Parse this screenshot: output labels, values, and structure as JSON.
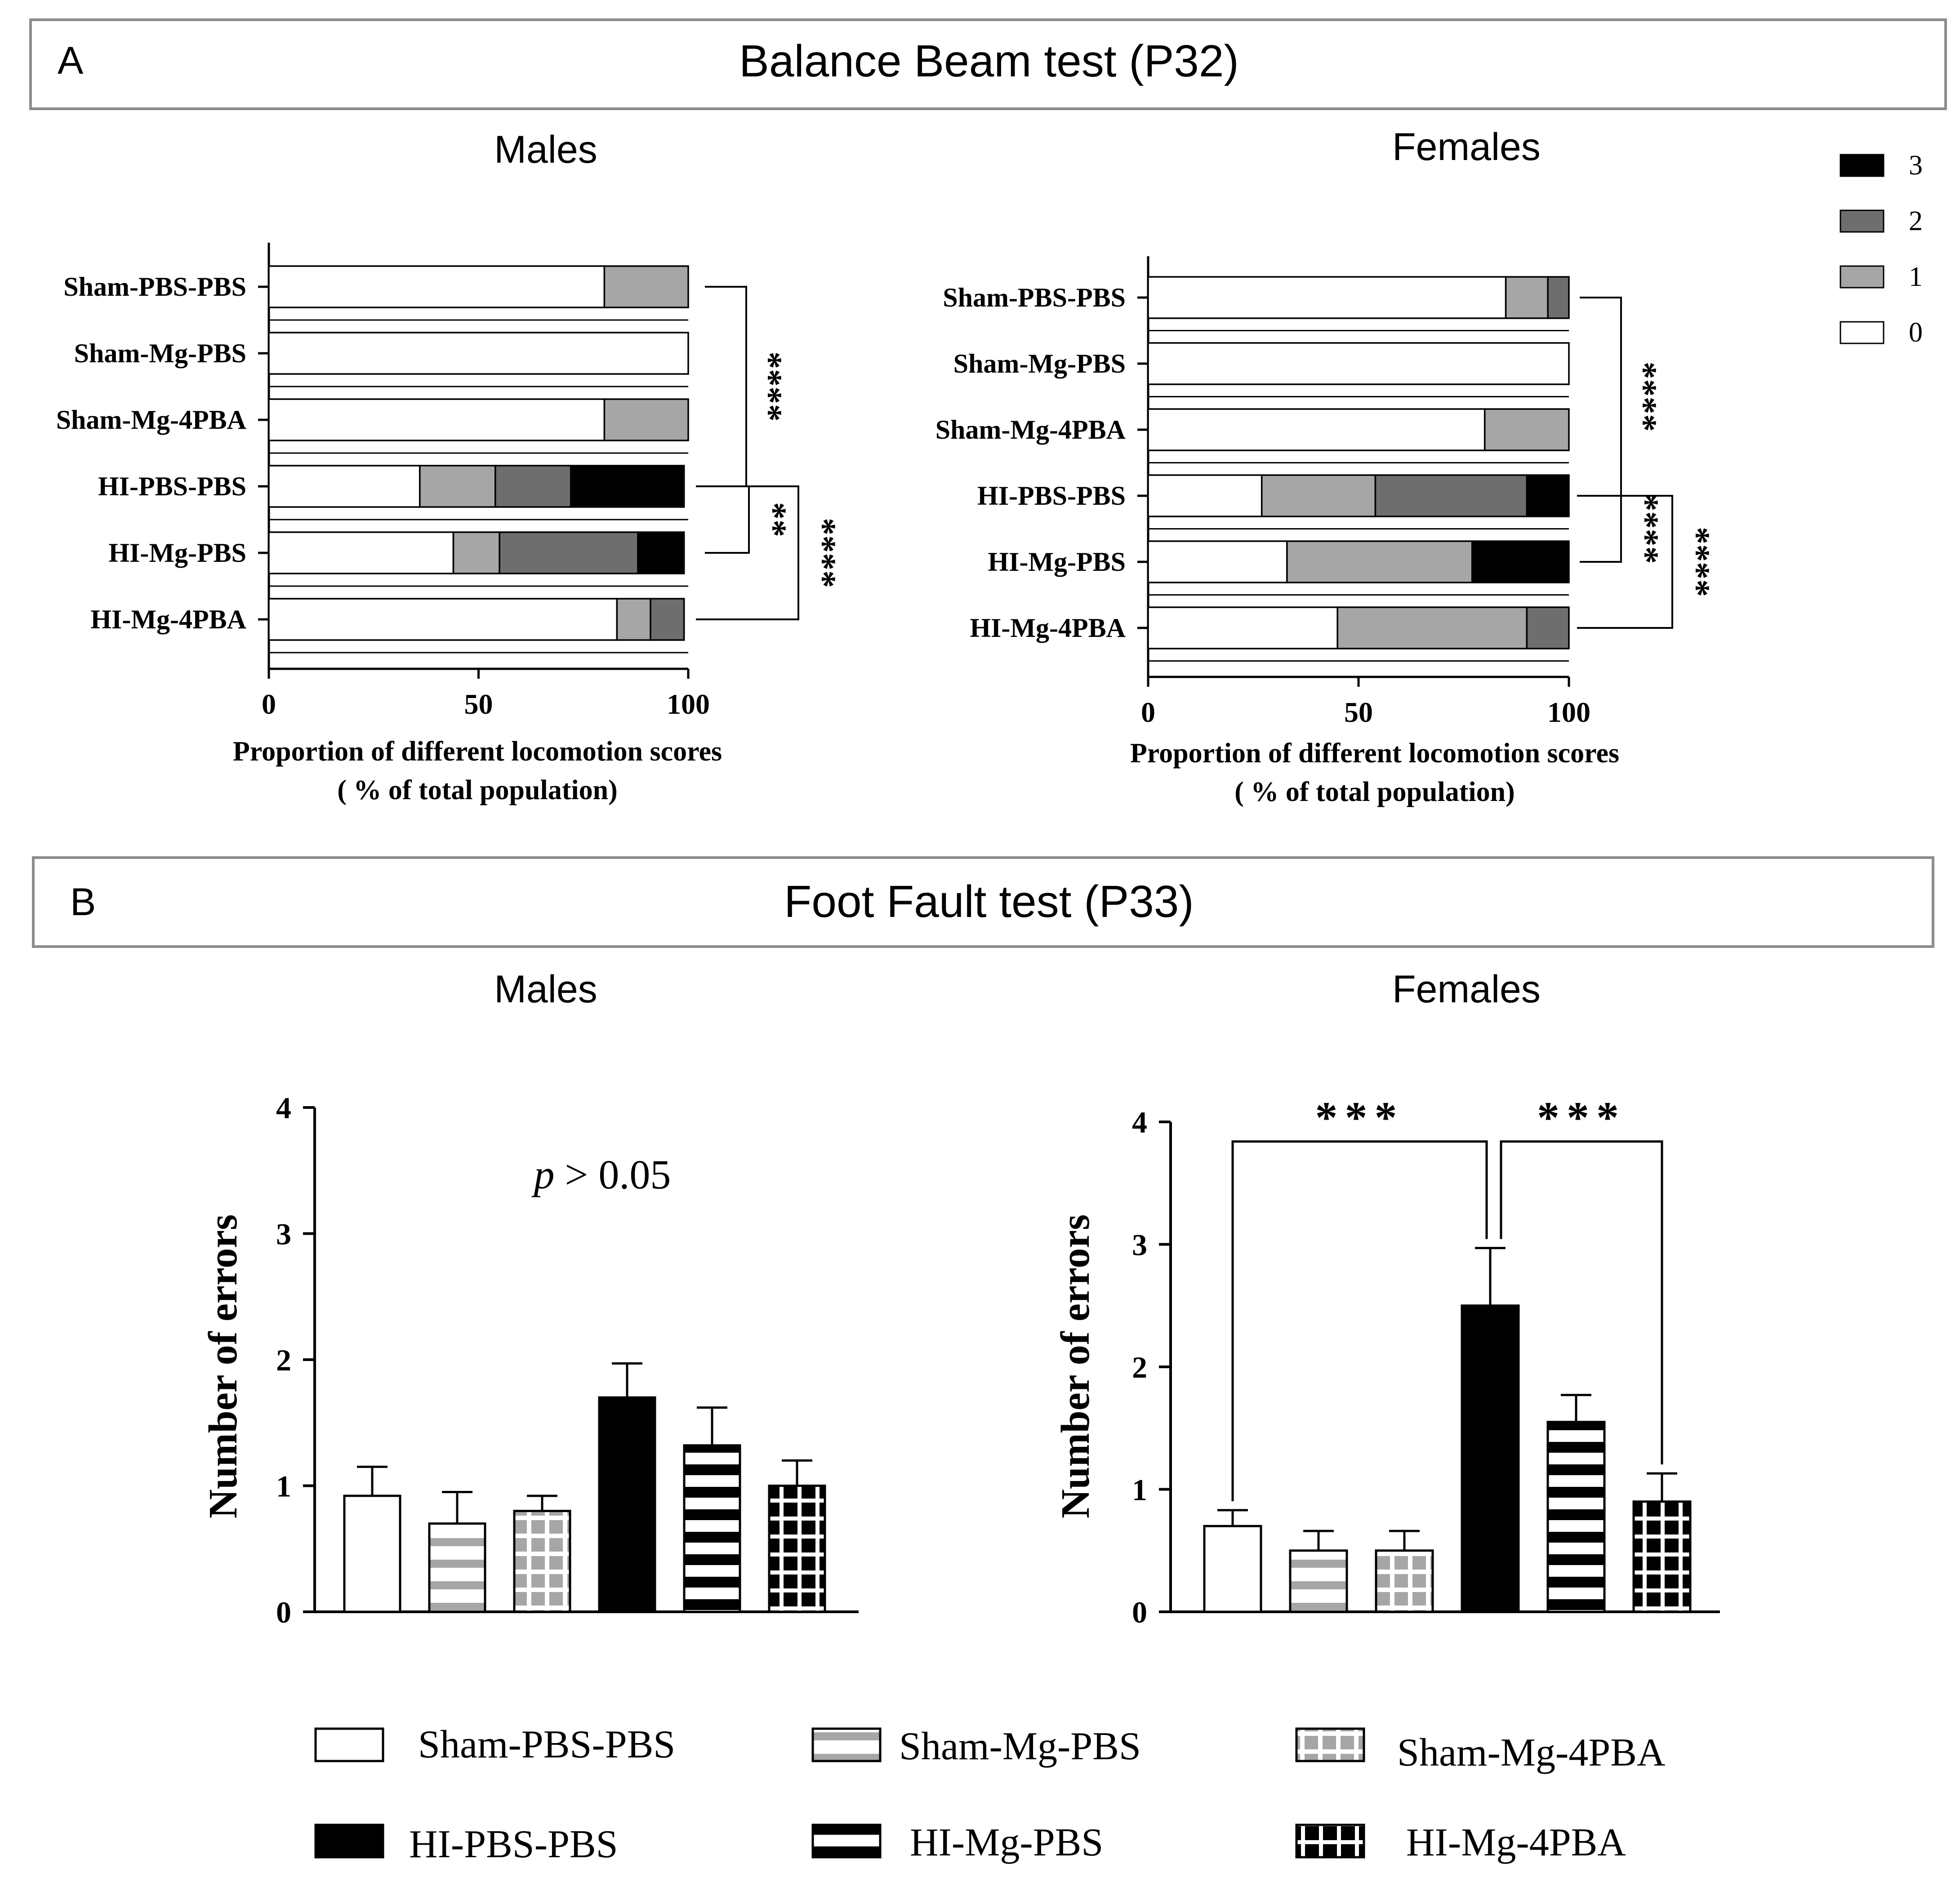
{
  "panels": {
    "A": {
      "letter": "A",
      "title": "Balance Beam test (P32)"
    },
    "B": {
      "letter": "B",
      "title": "Foot Fault test (P33)"
    }
  },
  "score_legend": {
    "items": [
      {
        "label": "3",
        "color": "#000000"
      },
      {
        "label": "2",
        "color": "#6e6e6e"
      },
      {
        "label": "1",
        "color": "#a6a6a6"
      },
      {
        "label": "0",
        "color": "#ffffff"
      }
    ]
  },
  "group_legend": {
    "items": [
      {
        "label": "Sham-PBS-PBS",
        "pattern": "open"
      },
      {
        "label": "Sham-Mg-PBS",
        "pattern": "hstripe-gray"
      },
      {
        "label": "Sham-Mg-4PBA",
        "pattern": "grid-gray"
      },
      {
        "label": "HI-PBS-PBS",
        "pattern": "solid-black"
      },
      {
        "label": "HI-Mg-PBS",
        "pattern": "hstripe-black"
      },
      {
        "label": "HI-Mg-4PBA",
        "pattern": "grid-black"
      }
    ]
  },
  "chart_data": [
    {
      "id": "A-males",
      "type": "bar",
      "orientation": "horizontal",
      "stacked": true,
      "title": "Males",
      "xlabel": "Proportion of different locomotion scores",
      "xlabel2": "( % of total population)",
      "xlim": [
        0,
        100
      ],
      "xticks": [
        0,
        50,
        100
      ],
      "categories": [
        "Sham-PBS-PBS",
        "Sham-Mg-PBS",
        "Sham-Mg-4PBA",
        "HI-PBS-PBS",
        "HI-Mg-PBS",
        "HI-Mg-4PBA"
      ],
      "series": [
        {
          "name": "0",
          "color": "#ffffff",
          "values": [
            80,
            100,
            80,
            36,
            44,
            83
          ]
        },
        {
          "name": "1",
          "color": "#a6a6a6",
          "values": [
            20,
            0,
            20,
            18,
            11,
            8
          ]
        },
        {
          "name": "2",
          "color": "#6e6e6e",
          "values": [
            0,
            0,
            0,
            18,
            33,
            8
          ]
        },
        {
          "name": "3",
          "color": "#000000",
          "values": [
            0,
            0,
            0,
            27,
            11,
            0
          ]
        }
      ],
      "significance": [
        {
          "from": "Sham-PBS-PBS",
          "to": "HI-PBS-PBS",
          "label": "****"
        },
        {
          "from": "HI-PBS-PBS",
          "to": "HI-Mg-PBS",
          "label": "**"
        },
        {
          "from": "HI-PBS-PBS",
          "to": "HI-Mg-4PBA",
          "label": "****"
        }
      ]
    },
    {
      "id": "A-females",
      "type": "bar",
      "orientation": "horizontal",
      "stacked": true,
      "title": "Females",
      "xlabel": "Proportion of different locomotion scores",
      "xlabel2": "( % of total population)",
      "xlim": [
        0,
        100
      ],
      "xticks": [
        0,
        50,
        100
      ],
      "categories": [
        "Sham-PBS-PBS",
        "Sham-Mg-PBS",
        "Sham-Mg-4PBA",
        "HI-PBS-PBS",
        "HI-Mg-PBS",
        "HI-Mg-4PBA"
      ],
      "series": [
        {
          "name": "0",
          "color": "#ffffff",
          "values": [
            85,
            100,
            80,
            27,
            33,
            45
          ]
        },
        {
          "name": "1",
          "color": "#a6a6a6",
          "values": [
            10,
            0,
            20,
            27,
            44,
            45
          ]
        },
        {
          "name": "2",
          "color": "#6e6e6e",
          "values": [
            5,
            0,
            0,
            36,
            0,
            10
          ]
        },
        {
          "name": "3",
          "color": "#000000",
          "values": [
            0,
            0,
            0,
            10,
            23,
            0
          ]
        }
      ],
      "significance": [
        {
          "from": "Sham-PBS-PBS",
          "to": "HI-PBS-PBS",
          "label": "****"
        },
        {
          "from": "HI-PBS-PBS",
          "to": "HI-Mg-PBS",
          "label": "****"
        },
        {
          "from": "HI-PBS-PBS",
          "to": "HI-Mg-4PBA",
          "label": "****"
        }
      ]
    },
    {
      "id": "B-males",
      "type": "bar",
      "title": "Males",
      "ylabel": "Number of errors",
      "ylim": [
        0,
        4
      ],
      "yticks": [
        0,
        1,
        2,
        3,
        4
      ],
      "categories": [
        "Sham-PBS-PBS",
        "Sham-Mg-PBS",
        "Sham-Mg-4PBA",
        "HI-PBS-PBS",
        "HI-Mg-PBS",
        "HI-Mg-4PBA"
      ],
      "values": [
        0.92,
        0.7,
        0.8,
        1.7,
        1.32,
        1.0
      ],
      "errors": [
        0.23,
        0.25,
        0.12,
        0.27,
        0.3,
        0.2
      ],
      "annotation": {
        "italic": "p",
        "text": " > 0.05"
      }
    },
    {
      "id": "B-females",
      "type": "bar",
      "title": "Females",
      "ylabel": "Number of errors",
      "ylim": [
        0,
        4
      ],
      "yticks": [
        0,
        1,
        2,
        3,
        4
      ],
      "categories": [
        "Sham-PBS-PBS",
        "Sham-Mg-PBS",
        "Sham-Mg-4PBA",
        "HI-PBS-PBS",
        "HI-Mg-PBS",
        "HI-Mg-4PBA"
      ],
      "values": [
        0.7,
        0.5,
        0.5,
        2.5,
        1.55,
        0.9
      ],
      "errors": [
        0.13,
        0.16,
        0.16,
        0.47,
        0.22,
        0.23
      ],
      "significance": [
        {
          "from": "Sham-PBS-PBS",
          "to": "HI-PBS-PBS",
          "label": "***"
        },
        {
          "from": "HI-PBS-PBS",
          "to": "HI-Mg-4PBA",
          "label": "***"
        }
      ]
    }
  ]
}
